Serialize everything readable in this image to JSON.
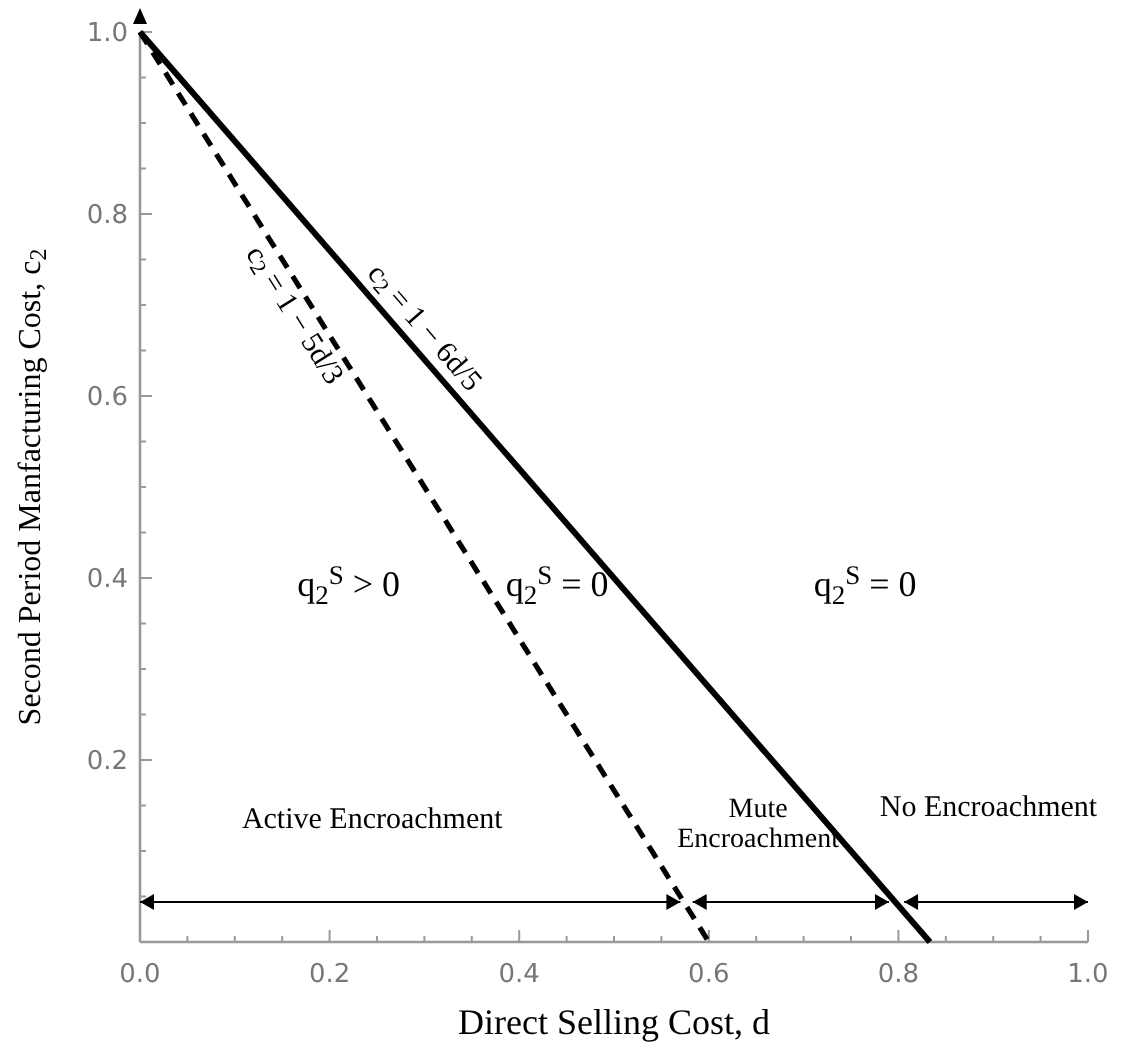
{
  "chart_data": {
    "type": "line",
    "xlabel": "Direct Selling Cost, d",
    "ylabel": "Second Period Manfacturing Cost, c$_{2}$",
    "xlim": [
      0,
      1
    ],
    "ylim": [
      0,
      1
    ],
    "xticks": [
      {
        "value": 0,
        "label": "0.0"
      },
      {
        "value": 0.05,
        "label": null
      },
      {
        "value": 0.1,
        "label": null
      },
      {
        "value": 0.15,
        "label": null
      },
      0.2,
      {
        "value": 0.25,
        "label": null
      },
      {
        "value": 0.3,
        "label": null
      },
      {
        "value": 0.35,
        "label": null
      },
      0.4,
      {
        "value": 0.45,
        "label": null
      },
      {
        "value": 0.5,
        "label": null
      },
      {
        "value": 0.55,
        "label": null
      },
      0.6,
      {
        "value": 0.65,
        "label": null
      },
      {
        "value": 0.7,
        "label": null
      },
      {
        "value": 0.75,
        "label": null
      },
      0.8,
      {
        "value": 0.85,
        "label": null
      },
      {
        "value": 0.9,
        "label": null
      },
      {
        "value": 0.95,
        "label": null
      },
      {
        "value": 1,
        "label": "1.0"
      }
    ],
    "yticks": [
      {
        "value": 0.05,
        "label": null
      },
      {
        "value": 0.1,
        "label": null
      },
      {
        "value": 0.15,
        "label": null
      },
      0.2,
      {
        "value": 0.25,
        "label": null
      },
      {
        "value": 0.3,
        "label": null
      },
      {
        "value": 0.35,
        "label": null
      },
      0.4,
      {
        "value": 0.45,
        "label": null
      },
      {
        "value": 0.5,
        "label": null
      },
      {
        "value": 0.55,
        "label": null
      },
      0.6,
      {
        "value": 0.65,
        "label": null
      },
      {
        "value": 0.7,
        "label": null
      },
      {
        "value": 0.75,
        "label": null
      },
      0.8,
      {
        "value": 0.85,
        "label": null
      },
      {
        "value": 0.9,
        "label": null
      },
      {
        "value": 0.95,
        "label": null
      },
      {
        "value": 1,
        "label": "1.0"
      }
    ],
    "grid": false,
    "series": [
      {
        "name": "c$_{2}$ = 1 − 6d/5",
        "color": "#000000",
        "line_style": "solid",
        "x": [
          0,
          0.8333
        ],
        "values": [
          1,
          0
        ]
      },
      {
        "name": "c$_{2}$ = 1 − 5d/3",
        "color": "#000000",
        "line_style": "dashed",
        "x": [
          0,
          0.6
        ],
        "values": [
          1,
          0
        ]
      }
    ],
    "annotations": [
      "q$_{2}$$^{S}$ > 0",
      "q$_{2}$$^{S}$ = 0",
      "q$_{2}$$^{S}$ = 0",
      "Active Encroachment",
      "Mute Encroachment",
      "No Encroachment"
    ]
  }
}
